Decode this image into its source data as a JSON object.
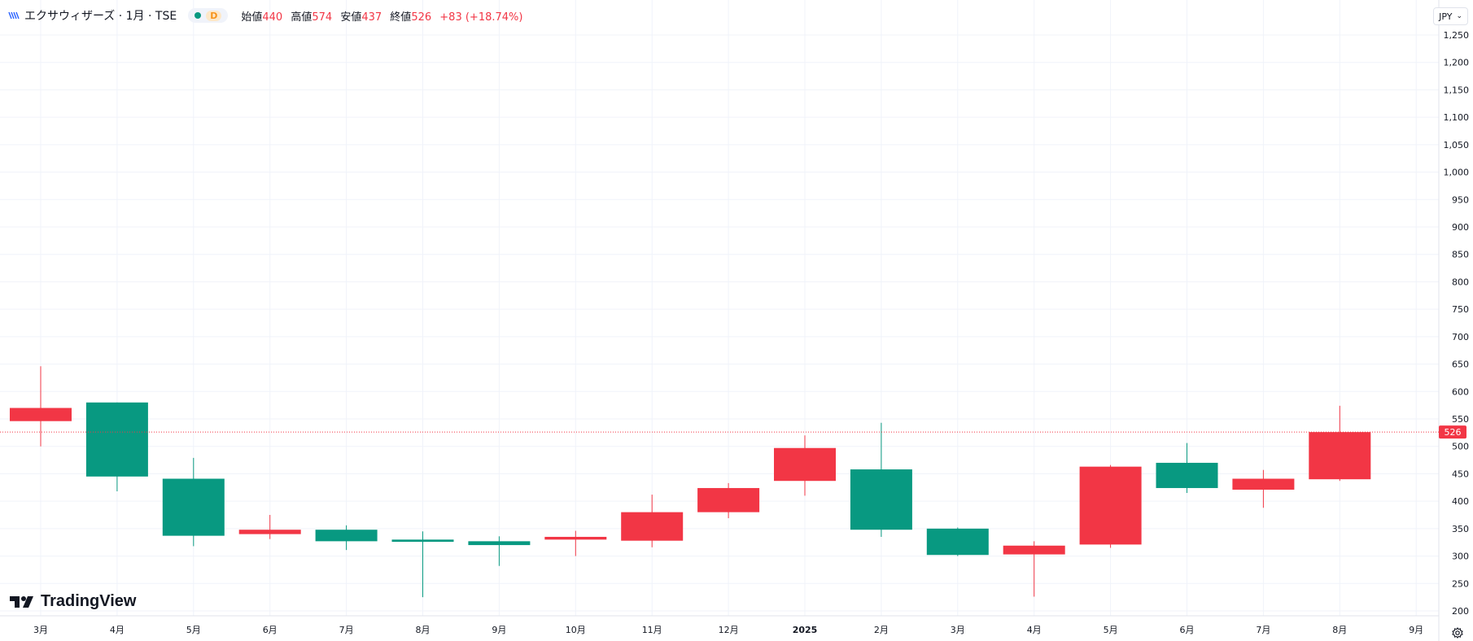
{
  "legend": {
    "symbol_icon": "chart-bars-icon",
    "title": "エクサウィザーズ · 1月 · TSE",
    "status_letter": "D",
    "open_label": "始値",
    "open": "440",
    "high_label": "高値",
    "high": "574",
    "low_label": "安値",
    "low": "437",
    "close_label": "終値",
    "close": "526",
    "change": "+83 (+18.74%)"
  },
  "currency": "JPY",
  "logo_text": "TradingView",
  "last_price_label": "526",
  "colors": {
    "up": "#089981",
    "down": "#f23645",
    "grid": "#f0f3fa",
    "axis_text": "#131722"
  },
  "chart_data": {
    "type": "candlestick",
    "note_colors": "red = price rose during month, green = price fell during month",
    "ylim": [
      195,
      1275
    ],
    "y_ticks": [
      200,
      250,
      300,
      350,
      400,
      450,
      500,
      550,
      600,
      650,
      700,
      750,
      800,
      850,
      900,
      950,
      1000,
      1050,
      1100,
      1150,
      1200,
      1250
    ],
    "y_tick_labels": [
      "200",
      "250",
      "300",
      "350",
      "400",
      "450",
      "500",
      "550",
      "600",
      "650",
      "700",
      "750",
      "800",
      "850",
      "900",
      "950",
      "1,000",
      "1,050",
      "1,100",
      "1,150",
      "1,200",
      "1,250"
    ],
    "x_labels": [
      "3月",
      "4月",
      "5月",
      "6月",
      "7月",
      "8月",
      "9月",
      "10月",
      "11月",
      "12月",
      "2025",
      "2月",
      "3月",
      "4月",
      "5月",
      "6月",
      "7月",
      "8月",
      "9月"
    ],
    "candles": [
      {
        "month": "3月",
        "open": 546,
        "high": 646,
        "low": 500,
        "close": 570
      },
      {
        "month": "4月",
        "open": 580,
        "high": 580,
        "low": 418,
        "close": 445
      },
      {
        "month": "5月",
        "open": 441,
        "high": 479,
        "low": 318,
        "close": 337
      },
      {
        "month": "6月",
        "open": 340,
        "high": 375,
        "low": 331,
        "close": 348
      },
      {
        "month": "7月",
        "open": 348,
        "high": 356,
        "low": 311,
        "close": 327
      },
      {
        "month": "8月",
        "open": 330,
        "high": 345,
        "low": 225,
        "close": 326
      },
      {
        "month": "9月",
        "open": 327,
        "high": 336,
        "low": 282,
        "close": 320
      },
      {
        "month": "10月",
        "open": 330,
        "high": 346,
        "low": 300,
        "close": 335
      },
      {
        "month": "11月",
        "open": 328,
        "high": 412,
        "low": 316,
        "close": 380
      },
      {
        "month": "12月",
        "open": 380,
        "high": 433,
        "low": 369,
        "close": 424
      },
      {
        "month": "2025",
        "open": 437,
        "high": 520,
        "low": 410,
        "close": 497
      },
      {
        "month": "2月",
        "open": 458,
        "high": 543,
        "low": 335,
        "close": 348
      },
      {
        "month": "3月",
        "open": 350,
        "high": 352,
        "low": 300,
        "close": 302
      },
      {
        "month": "4月",
        "open": 303,
        "high": 327,
        "low": 226,
        "close": 319
      },
      {
        "month": "5月",
        "open": 321,
        "high": 466,
        "low": 315,
        "close": 463
      },
      {
        "month": "6月",
        "open": 470,
        "high": 506,
        "low": 415,
        "close": 424
      },
      {
        "month": "7月",
        "open": 421,
        "high": 457,
        "low": 388,
        "close": 441
      },
      {
        "month": "8月",
        "open": 440,
        "high": 574,
        "low": 437,
        "close": 526
      }
    ],
    "last_price": 526
  }
}
